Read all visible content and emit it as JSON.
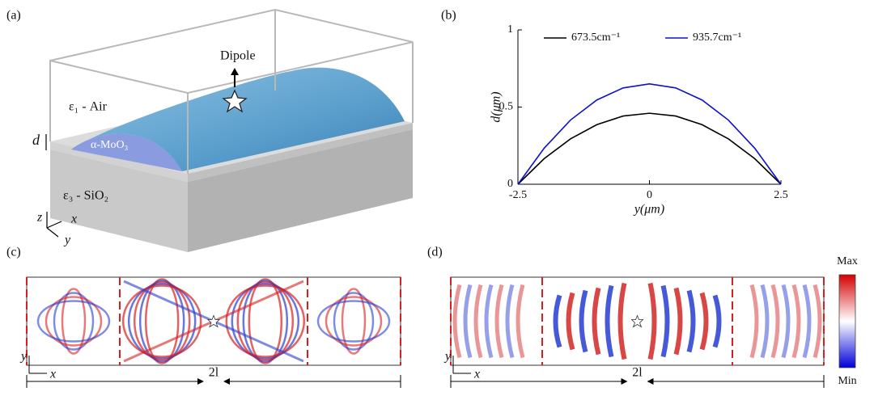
{
  "panel_labels": [
    "(a)",
    "(b)",
    "(c)",
    "(d)"
  ],
  "schematic": {
    "dipole": "Dipole",
    "air": "ε₁ - Air",
    "film": "α-MoO₃",
    "substrate": "ε₃ - SiO₂",
    "thickness": "d",
    "axis_z": "z",
    "axis_x": "x",
    "axis_y": "y"
  },
  "chart_data": {
    "type": "line",
    "x": [
      -2.5,
      -2,
      -1.5,
      -1,
      -0.5,
      0,
      0.5,
      1,
      1.5,
      2,
      2.5
    ],
    "series": [
      {
        "name": "673.5cm⁻¹",
        "color": "#000000",
        "values": [
          0,
          0.166,
          0.294,
          0.386,
          0.442,
          0.46,
          0.442,
          0.386,
          0.294,
          0.166,
          0
        ]
      },
      {
        "name": "935.7cm⁻¹",
        "color": "#1010c8",
        "values": [
          0,
          0.234,
          0.416,
          0.546,
          0.624,
          0.65,
          0.624,
          0.546,
          0.416,
          0.234,
          0
        ]
      }
    ],
    "xlabel": "y(μm)",
    "ylabel": "d(μm)",
    "xlim": [
      -2.5,
      2.5
    ],
    "ylim": [
      0,
      1
    ],
    "xticks": [
      -2.5,
      0,
      2.5
    ],
    "yticks": [
      0,
      0.5,
      1
    ]
  },
  "field_maps": [
    {
      "x_label": "x",
      "y_label": "y",
      "length_label": "2l"
    },
    {
      "x_label": "x",
      "y_label": "y",
      "length_label": "2l"
    }
  ],
  "colorbar": {
    "max": "Max",
    "min": "Min"
  }
}
